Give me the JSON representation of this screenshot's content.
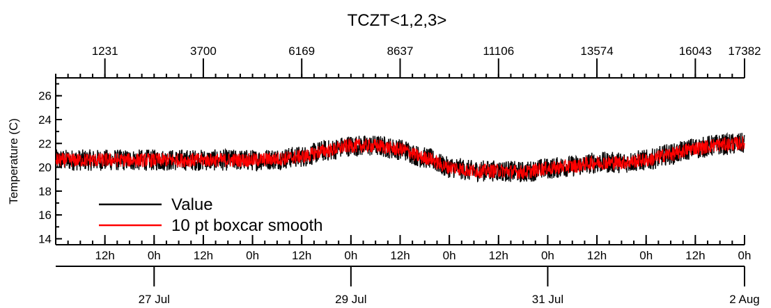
{
  "chart_data": {
    "type": "line",
    "title": "TCZT<1,2,3>",
    "ylabel": "Temperature (C)",
    "xlabel": "",
    "ylim": [
      13.5,
      27.5
    ],
    "y_ticks": [
      14,
      16,
      18,
      20,
      22,
      24,
      26
    ],
    "x_unit": "hours",
    "x_range_hours": [
      0,
      168
    ],
    "top_axis": {
      "ticks": [
        {
          "label": "1231",
          "hour": 12
        },
        {
          "label": "3700",
          "hour": 36
        },
        {
          "label": "6169",
          "hour": 60
        },
        {
          "label": "8637",
          "hour": 84
        },
        {
          "label": "11106",
          "hour": 108
        },
        {
          "label": "13574",
          "hour": 132
        },
        {
          "label": "16043",
          "hour": 156
        },
        {
          "label": "17382",
          "hour": 168
        }
      ]
    },
    "hour_ticks": [
      {
        "label": "12h",
        "hour": 12
      },
      {
        "label": "0h",
        "hour": 24
      },
      {
        "label": "12h",
        "hour": 36
      },
      {
        "label": "0h",
        "hour": 48
      },
      {
        "label": "12h",
        "hour": 60
      },
      {
        "label": "0h",
        "hour": 72
      },
      {
        "label": "12h",
        "hour": 84
      },
      {
        "label": "0h",
        "hour": 96
      },
      {
        "label": "12h",
        "hour": 108
      },
      {
        "label": "0h",
        "hour": 120
      },
      {
        "label": "12h",
        "hour": 132
      },
      {
        "label": "0h",
        "hour": 144
      },
      {
        "label": "12h",
        "hour": 156
      },
      {
        "label": "0h",
        "hour": 168
      }
    ],
    "date_ticks": [
      {
        "label": "27 Jul",
        "hour": 24
      },
      {
        "label": "29 Jul",
        "hour": 72
      },
      {
        "label": "31 Jul",
        "hour": 120
      },
      {
        "label": "2 Aug",
        "hour": 168
      }
    ],
    "series": [
      {
        "name": "Value",
        "color": "#000000",
        "hours": [
          0,
          12,
          24,
          36,
          48,
          54,
          60,
          66,
          72,
          78,
          84,
          90,
          96,
          102,
          108,
          114,
          120,
          126,
          132,
          138,
          144,
          150,
          156,
          162,
          168
        ],
        "center": [
          20.6,
          20.6,
          20.6,
          20.6,
          20.6,
          20.7,
          20.9,
          21.4,
          21.8,
          21.8,
          21.5,
          20.8,
          20.0,
          19.7,
          19.7,
          19.6,
          19.9,
          20.1,
          20.4,
          20.4,
          20.6,
          21.1,
          21.6,
          21.9,
          22.0
        ],
        "half_range": 0.9
      },
      {
        "name": "10 pt boxcar smooth",
        "color": "#ff0000",
        "hours": [
          0,
          12,
          24,
          36,
          48,
          54,
          60,
          66,
          72,
          78,
          84,
          90,
          96,
          102,
          108,
          114,
          120,
          126,
          132,
          138,
          144,
          150,
          156,
          162,
          168
        ],
        "center": [
          20.6,
          20.6,
          20.6,
          20.6,
          20.6,
          20.7,
          20.9,
          21.4,
          21.8,
          21.8,
          21.5,
          20.8,
          20.0,
          19.7,
          19.7,
          19.6,
          19.9,
          20.1,
          20.4,
          20.4,
          20.6,
          21.1,
          21.6,
          21.9,
          22.0
        ],
        "half_range": 0.6
      }
    ],
    "legend": {
      "placement": "bottom-left",
      "entries": [
        "Value",
        "10 pt boxcar smooth"
      ]
    },
    "grid": false
  }
}
